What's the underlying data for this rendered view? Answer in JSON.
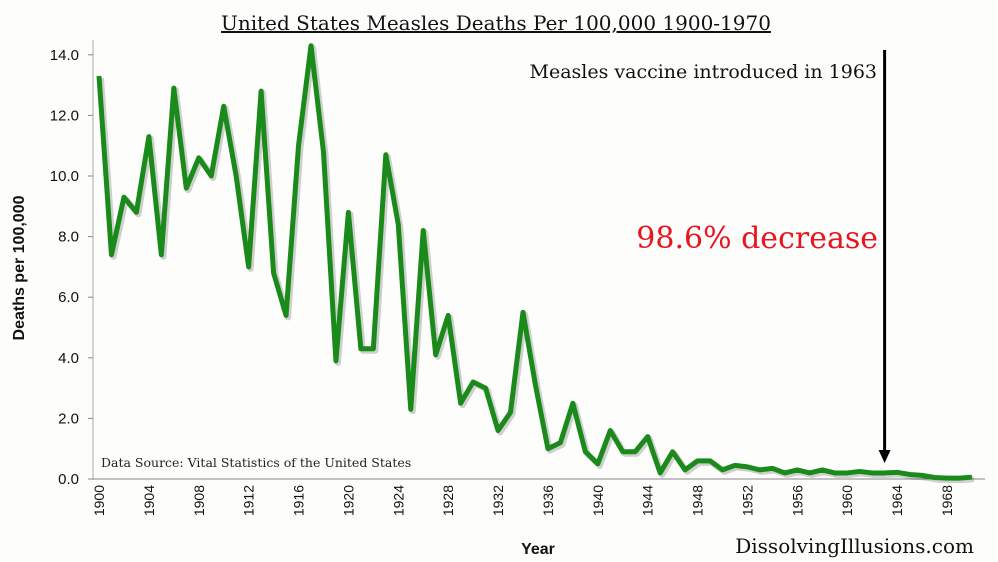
{
  "chart_data": {
    "type": "line",
    "title": "United States Measles Deaths Per 100,000 1900-1970",
    "xlabel": "Year",
    "ylabel": "Deaths per 100,000",
    "ylim": [
      0,
      14
    ],
    "xlim": [
      1900,
      1970
    ],
    "grid": false,
    "y_ticks": [
      "0.0",
      "2.0",
      "4.0",
      "6.0",
      "8.0",
      "10.0",
      "12.0",
      "14.0"
    ],
    "x_ticks": [
      "1900",
      "1904",
      "1908",
      "1912",
      "1916",
      "1920",
      "1924",
      "1928",
      "1932",
      "1936",
      "1940",
      "1944",
      "1948",
      "1952",
      "1956",
      "1960",
      "1964",
      "1968"
    ],
    "series": [
      {
        "name": "Measles deaths per 100,000",
        "color": "#1a8a1a",
        "x": [
          1900,
          1901,
          1902,
          1903,
          1904,
          1905,
          1906,
          1907,
          1908,
          1909,
          1910,
          1911,
          1912,
          1913,
          1914,
          1915,
          1916,
          1917,
          1918,
          1919,
          1920,
          1921,
          1922,
          1923,
          1924,
          1925,
          1926,
          1927,
          1928,
          1929,
          1930,
          1931,
          1932,
          1933,
          1934,
          1935,
          1936,
          1937,
          1938,
          1939,
          1940,
          1941,
          1942,
          1943,
          1944,
          1945,
          1946,
          1947,
          1948,
          1949,
          1950,
          1951,
          1952,
          1953,
          1954,
          1955,
          1956,
          1957,
          1958,
          1959,
          1960,
          1961,
          1962,
          1963,
          1964,
          1965,
          1966,
          1967,
          1968,
          1969,
          1970
        ],
        "values": [
          13.3,
          7.4,
          9.3,
          8.8,
          11.3,
          7.4,
          12.9,
          9.6,
          10.6,
          10.0,
          12.3,
          10.0,
          7.0,
          12.8,
          6.8,
          5.4,
          11.0,
          14.3,
          10.8,
          3.9,
          8.8,
          4.3,
          4.3,
          10.7,
          8.4,
          2.3,
          8.2,
          4.1,
          5.4,
          2.5,
          3.2,
          3.0,
          1.6,
          2.2,
          5.5,
          3.1,
          1.0,
          1.2,
          2.5,
          0.9,
          0.5,
          1.6,
          0.9,
          0.9,
          1.4,
          0.2,
          0.9,
          0.3,
          0.6,
          0.6,
          0.3,
          0.45,
          0.4,
          0.3,
          0.35,
          0.2,
          0.3,
          0.2,
          0.3,
          0.2,
          0.2,
          0.25,
          0.2,
          0.2,
          0.22,
          0.15,
          0.12,
          0.05,
          0.03,
          0.03,
          0.06
        ]
      }
    ],
    "annotations": {
      "vaccine": "Measles vaccine introduced in 1963",
      "vaccine_year": 1963,
      "decrease": "98.6% decrease",
      "decrease_color": "#e8141e",
      "source": "Data Source:  Vital Statistics of the United States",
      "credit": "DissolvingIllusions.com"
    }
  }
}
